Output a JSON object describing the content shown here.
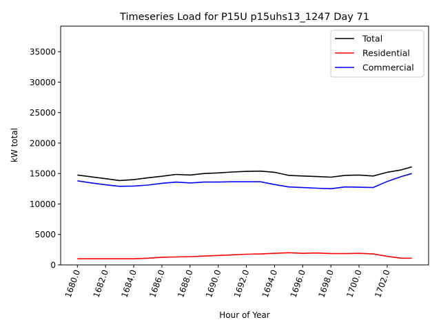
{
  "chart_data": {
    "type": "line",
    "title": "Timeseries Load for P15U p15uhs13_1247  Day 71",
    "xlabel": "Hour of Year",
    "ylabel": "kW total",
    "xlim": [
      1678.81,
      1704.94
    ],
    "ylim": [
      0,
      39200
    ],
    "xticks": [
      1680,
      1682,
      1684,
      1686,
      1688,
      1690,
      1692,
      1694,
      1696,
      1698,
      1700,
      1702
    ],
    "xtick_labels": [
      "1680.0",
      "1682.0",
      "1684.0",
      "1686.0",
      "1688.0",
      "1690.0",
      "1692.0",
      "1694.0",
      "1696.0",
      "1698.0",
      "1700.0",
      "1702.0"
    ],
    "yticks": [
      0,
      5000,
      10000,
      15000,
      20000,
      25000,
      30000,
      35000
    ],
    "ytick_labels": [
      "0",
      "5000",
      "10000",
      "15000",
      "20000",
      "25000",
      "30000",
      "35000"
    ],
    "grid": false,
    "legend_position": "top-right",
    "x": [
      1680,
      1681,
      1682,
      1683,
      1684,
      1685,
      1686,
      1687,
      1688,
      1689,
      1690,
      1691,
      1692,
      1693,
      1694,
      1695,
      1696,
      1697,
      1698,
      1699,
      1700,
      1701,
      1702,
      1703,
      1703.75
    ],
    "series": [
      {
        "name": "Total",
        "color": "#000000",
        "values": [
          14750,
          14450,
          14150,
          13850,
          14000,
          14300,
          14550,
          14850,
          14750,
          15000,
          15100,
          15250,
          15350,
          15400,
          15200,
          14700,
          14600,
          14500,
          14400,
          14700,
          14750,
          14600,
          15200,
          15600,
          16100
        ]
      },
      {
        "name": "Residential",
        "color": "#ff0000",
        "values": [
          1000,
          1000,
          1000,
          1000,
          1000,
          1100,
          1250,
          1300,
          1350,
          1450,
          1550,
          1650,
          1750,
          1800,
          1900,
          2000,
          1900,
          1950,
          1850,
          1850,
          1900,
          1800,
          1400,
          1100,
          1100
        ]
      },
      {
        "name": "Commercial",
        "color": "#0000ff",
        "values": [
          13800,
          13450,
          13150,
          12900,
          12950,
          13100,
          13400,
          13600,
          13450,
          13600,
          13600,
          13650,
          13650,
          13650,
          13200,
          12800,
          12700,
          12600,
          12500,
          12800,
          12750,
          12700,
          13700,
          14500,
          15000
        ]
      }
    ]
  }
}
